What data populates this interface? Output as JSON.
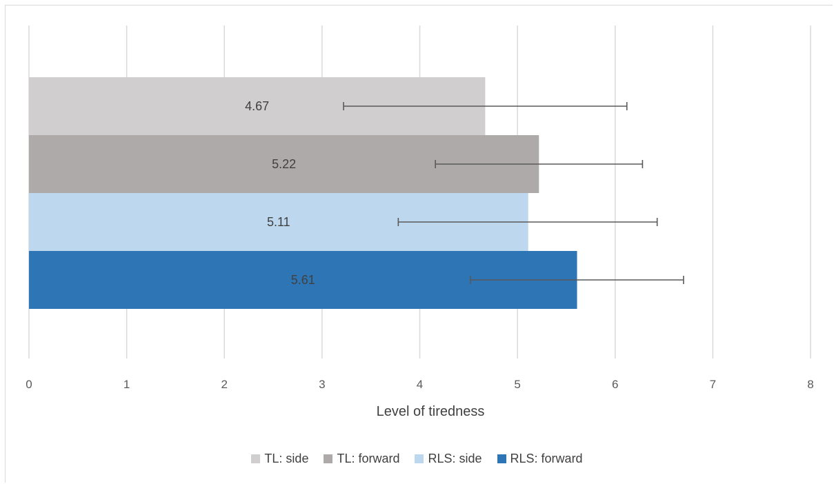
{
  "chart_data": {
    "type": "bar",
    "orientation": "horizontal",
    "title": "",
    "xlabel": "Level of tiredness",
    "ylabel": "",
    "xlim": [
      0,
      8
    ],
    "x_ticks": [
      "0",
      "1",
      "2",
      "3",
      "4",
      "5",
      "6",
      "7",
      "8"
    ],
    "grid": true,
    "legend_position": "bottom",
    "series": [
      {
        "name": "TL: side",
        "value": 4.67,
        "label": "4.67",
        "error_low": 3.22,
        "error_high": 6.12,
        "color": "#d0cece"
      },
      {
        "name": "TL: forward",
        "value": 5.22,
        "label": "5.22",
        "error_low": 4.16,
        "error_high": 6.28,
        "color": "#aeaaaa"
      },
      {
        "name": "RLS: side",
        "value": 5.11,
        "label": "5.11",
        "error_low": 3.78,
        "error_high": 6.43,
        "color": "#bdd7ee"
      },
      {
        "name": "RLS: forward",
        "value": 5.61,
        "label": "5.61",
        "error_low": 4.52,
        "error_high": 6.7,
        "color": "#2e75b6"
      }
    ],
    "gridline_color": "#d9d9d9",
    "error_bar_color": "#595959"
  }
}
